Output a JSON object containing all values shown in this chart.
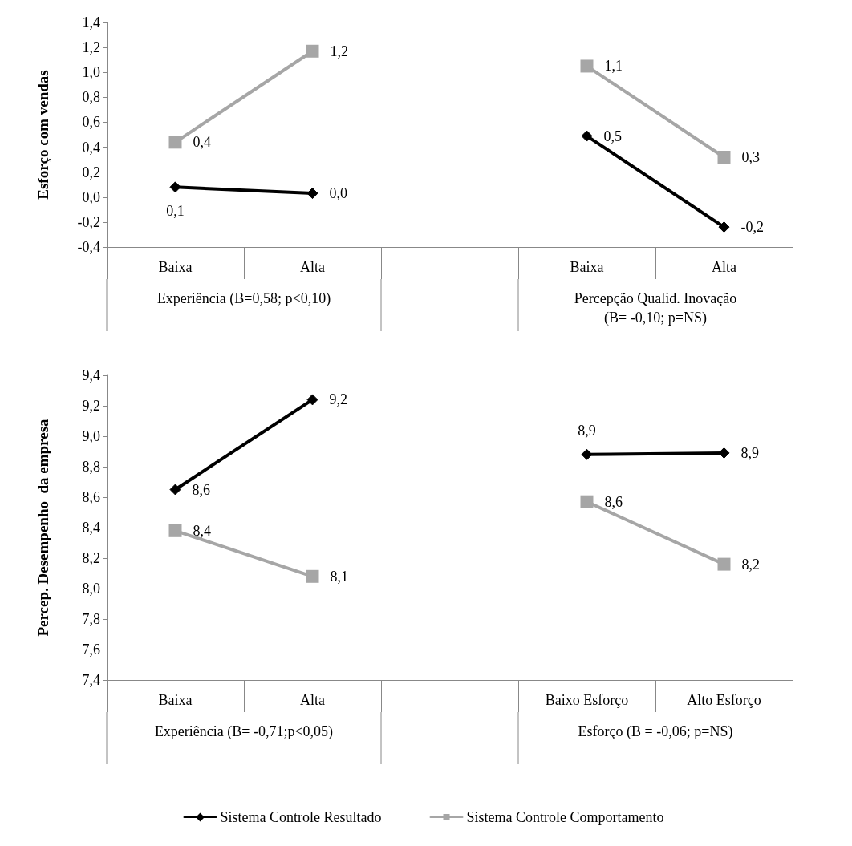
{
  "chart_data": [
    {
      "type": "line",
      "ylabel": "Esforço com vendas",
      "categories": [
        "Baixa",
        "Alta",
        null,
        "Baixa",
        "Alta"
      ],
      "annotations": [
        "Experiência (B=0,58; p<0,10)",
        "Percepção Qualid. Inovação\n(B= -0,10; p=NS)"
      ],
      "series": [
        {
          "color": "#000000",
          "marker": "diamond",
          "values": [
            0.08,
            0.03,
            null,
            0.49,
            -0.24
          ],
          "value_labels": [
            "0,1",
            "0,0",
            null,
            "0,5",
            "-0,2"
          ]
        },
        {
          "color": "#a6a6a6",
          "marker": "square",
          "values": [
            0.44,
            1.17,
            null,
            1.05,
            0.32
          ],
          "value_labels": [
            "0,4",
            "1,2",
            null,
            "1,1",
            "0,3"
          ]
        }
      ],
      "ylim": [
        -0.4,
        1.4
      ],
      "yticks": [
        {
          "value": -0.4,
          "label": "-0,4"
        },
        {
          "value": -0.2,
          "label": "-0,2"
        },
        {
          "value": 0,
          "label": "0,0"
        },
        {
          "value": 0.2,
          "label": "0,2"
        },
        {
          "value": 0.4,
          "label": "0,4"
        },
        {
          "value": 0.6,
          "label": "0,6"
        },
        {
          "value": 0.8,
          "label": "0,8"
        },
        {
          "value": 1.0,
          "label": "1,0"
        },
        {
          "value": 1.2,
          "label": "1,2"
        },
        {
          "value": 1.4,
          "label": "1,4"
        }
      ],
      "grid": false
    },
    {
      "type": "line",
      "ylabel": "Percep. Desempenho  da empresa",
      "categories": [
        "Baixa",
        "Alta",
        null,
        "Baixo Esforço",
        "Alto Esforço"
      ],
      "annotations": [
        "Experiência (B= -0,71;p<0,05)",
        "Esforço (B = -0,06; p=NS)"
      ],
      "series": [
        {
          "name": "Sistema Controle Resultado",
          "color": "#000000",
          "marker": "diamond",
          "values": [
            8.65,
            9.24,
            null,
            8.88,
            8.89
          ],
          "value_labels": [
            "8,6",
            "9,2",
            null,
            "8,9",
            "8,9"
          ]
        },
        {
          "name": "Sistema Controle Comportamento",
          "color": "#a6a6a6",
          "marker": "square",
          "values": [
            8.38,
            8.08,
            null,
            8.57,
            8.16
          ],
          "value_labels": [
            "8,4",
            "8,1",
            null,
            "8,6",
            "8,2"
          ]
        }
      ],
      "ylim": [
        7.4,
        9.4
      ],
      "yticks": [
        {
          "value": 7.4,
          "label": "7,4"
        },
        {
          "value": 7.6,
          "label": "7,6"
        },
        {
          "value": 7.8,
          "label": "7,8"
        },
        {
          "value": 8.0,
          "label": "8,0"
        },
        {
          "value": 8.2,
          "label": "8,2"
        },
        {
          "value": 8.4,
          "label": "8,4"
        },
        {
          "value": 8.6,
          "label": "8,6"
        },
        {
          "value": 8.8,
          "label": "8,8"
        },
        {
          "value": 9.0,
          "label": "9,0"
        },
        {
          "value": 9.2,
          "label": "9,2"
        },
        {
          "value": 9.4,
          "label": "9,4"
        }
      ],
      "grid": false,
      "legend": "bottom"
    }
  ]
}
